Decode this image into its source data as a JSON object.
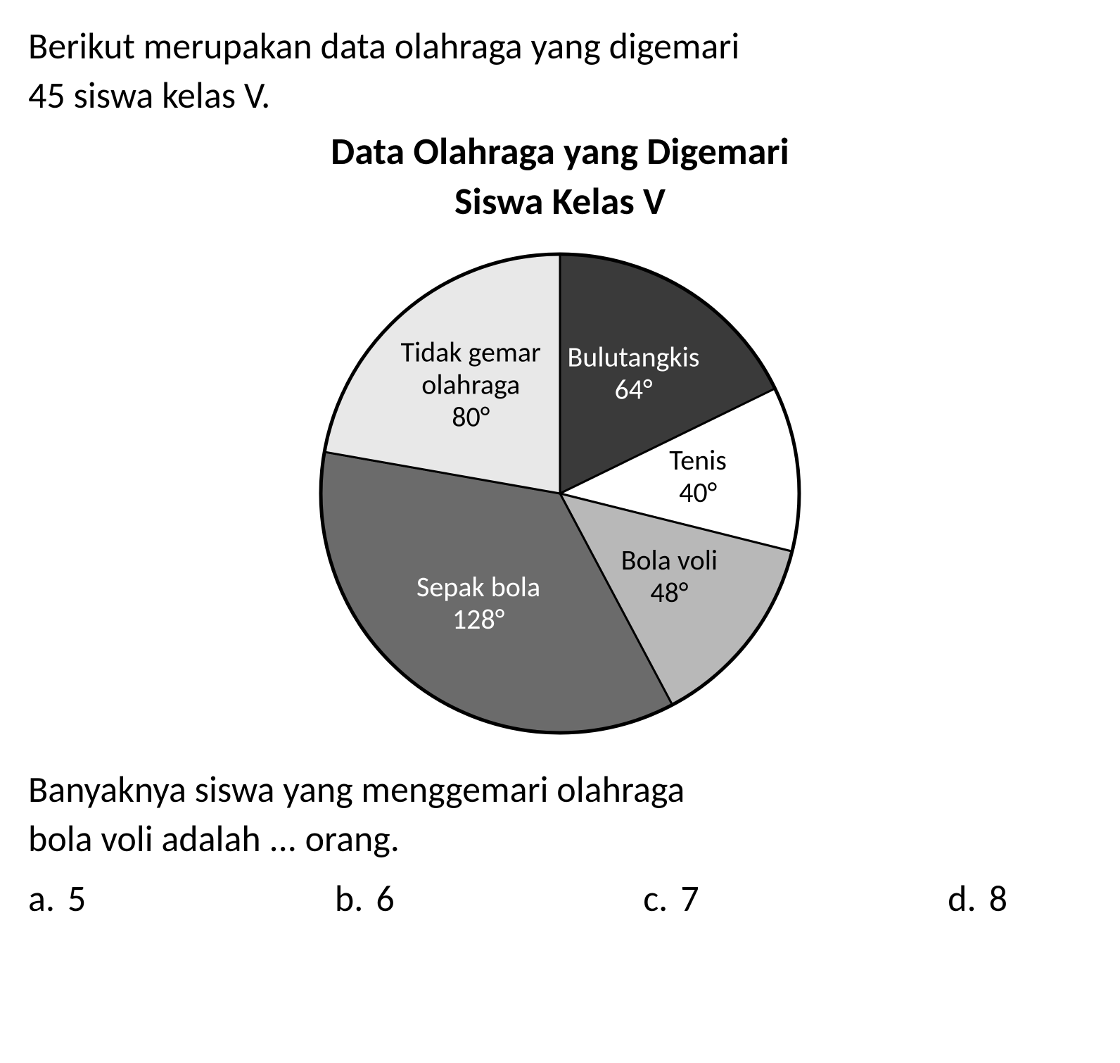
{
  "question_line1": "Berikut merupakan data olahraga yang digemari",
  "question_line2": "45 siswa kelas V.",
  "chart": {
    "type": "pie",
    "title_line1": "Data Olahraga yang Digemari",
    "title_line2": "Siswa Kelas V",
    "total_degrees": 360,
    "background_color": "#ffffff",
    "stroke_color": "#000000",
    "stroke_width": 3,
    "radius": 340,
    "font_family": "Calibri",
    "slices": [
      {
        "label_line1": "Bulutangkis",
        "label_line2": "64°",
        "degrees": 64,
        "fill": "#3a3a3a",
        "text_color": "#ffffff",
        "label_fontsize": 40
      },
      {
        "label_line1": "Tenis",
        "label_line2": "40°",
        "degrees": 40,
        "fill": "#ffffff",
        "text_color": "#000000",
        "label_fontsize": 40
      },
      {
        "label_line1": "Bola voli",
        "label_line2": "48°",
        "degrees": 48,
        "fill": "#b8b8b8",
        "text_color": "#000000",
        "label_fontsize": 40
      },
      {
        "label_line1": "Sepak bola",
        "label_line2": "128°",
        "degrees": 128,
        "fill": "#6b6b6b",
        "text_color": "#ffffff",
        "label_fontsize": 40
      },
      {
        "label_line1": "Tidak gemar",
        "label_line2": "olahraga",
        "label_line3": "80°",
        "degrees": 80,
        "fill": "#e8e8e8",
        "text_color": "#000000",
        "label_fontsize": 40
      }
    ],
    "start_angle_deg": -90
  },
  "post_question_line1": "Banyaknya siswa yang menggemari olahraga",
  "post_question_line2": "bola voli adalah ... orang.",
  "options": {
    "a": {
      "letter": "a.",
      "value": "5"
    },
    "b": {
      "letter": "b.",
      "value": "6"
    },
    "c": {
      "letter": "c.",
      "value": "7"
    },
    "d": {
      "letter": "d.",
      "value": "8"
    }
  }
}
